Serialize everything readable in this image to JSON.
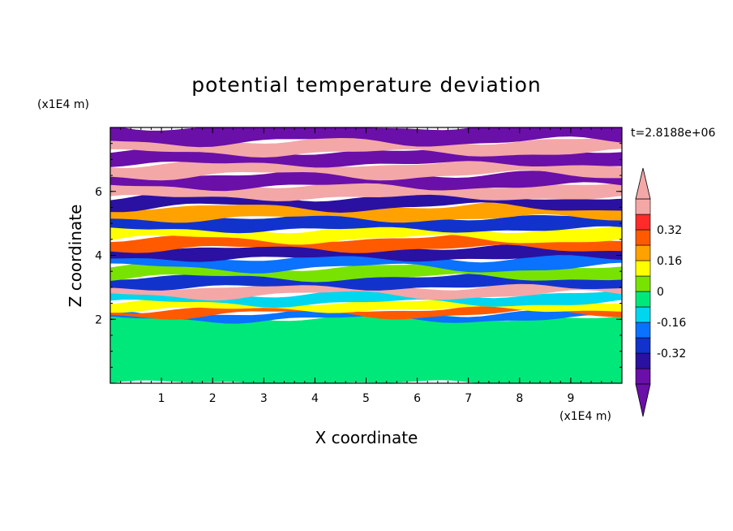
{
  "chart_data": {
    "type": "heatmap",
    "title": "potential temperature deviation",
    "xlabel": "X coordinate",
    "ylabel": "Z coordinate",
    "x_unit": "(x1E4 m)",
    "y_unit": "(x1E4 m)",
    "time_label": "t=2.8188e+06",
    "xlim": [
      0,
      10
    ],
    "ylim": [
      0,
      8
    ],
    "x_ticks": [
      "1",
      "2",
      "3",
      "4",
      "5",
      "6",
      "7",
      "8",
      "9"
    ],
    "y_ticks": [
      "2",
      "4",
      "6"
    ],
    "colorbar": {
      "levels": [
        -0.48,
        -0.4,
        -0.32,
        -0.24,
        -0.16,
        -0.08,
        0,
        0.08,
        0.16,
        0.24,
        0.32,
        0.4,
        0.48
      ],
      "labels": [
        "0.32",
        "0.16",
        "0",
        "-0.16",
        "-0.32"
      ],
      "label_values": [
        0.32,
        0.16,
        0,
        -0.16,
        -0.32
      ],
      "colors": [
        "#6a0fa8",
        "#2a11a1",
        "#1133cc",
        "#0a72ff",
        "#00d6ee",
        "#00e87a",
        "#78e300",
        "#ffff00",
        "#ffa200",
        "#ff5a00",
        "#ff2a2a",
        "#f4a7a7"
      ],
      "extend": "both"
    },
    "bands": [
      {
        "z": 0.0,
        "h": 2.0,
        "class": -0.04
      },
      {
        "z": 2.0,
        "h": 0.15,
        "class": -0.2
      },
      {
        "z": 2.15,
        "h": 0.15,
        "class": 0.3
      },
      {
        "z": 2.3,
        "h": 0.2,
        "class": 0.1
      },
      {
        "z": 2.5,
        "h": 0.25,
        "class": -0.12
      },
      {
        "z": 2.75,
        "h": 0.25,
        "class": 0.45
      },
      {
        "z": 3.0,
        "h": 0.3,
        "class": -0.28
      },
      {
        "z": 3.3,
        "h": 0.3,
        "class": 0.05
      },
      {
        "z": 3.6,
        "h": 0.3,
        "class": -0.2
      },
      {
        "z": 3.9,
        "h": 0.3,
        "class": -0.36
      },
      {
        "z": 4.2,
        "h": 0.3,
        "class": 0.3
      },
      {
        "z": 4.5,
        "h": 0.3,
        "class": 0.12
      },
      {
        "z": 4.8,
        "h": 0.35,
        "class": -0.3
      },
      {
        "z": 5.15,
        "h": 0.35,
        "class": 0.2
      },
      {
        "z": 5.5,
        "h": 0.3,
        "class": -0.38
      },
      {
        "z": 5.8,
        "h": 0.35,
        "class": 0.45
      },
      {
        "z": 6.15,
        "h": 0.35,
        "class": -0.45
      },
      {
        "z": 6.5,
        "h": 0.35,
        "class": 0.45
      },
      {
        "z": 6.85,
        "h": 0.35,
        "class": -0.45
      },
      {
        "z": 7.2,
        "h": 0.35,
        "class": 0.45
      },
      {
        "z": 7.55,
        "h": 0.45,
        "class": -0.45
      }
    ]
  }
}
